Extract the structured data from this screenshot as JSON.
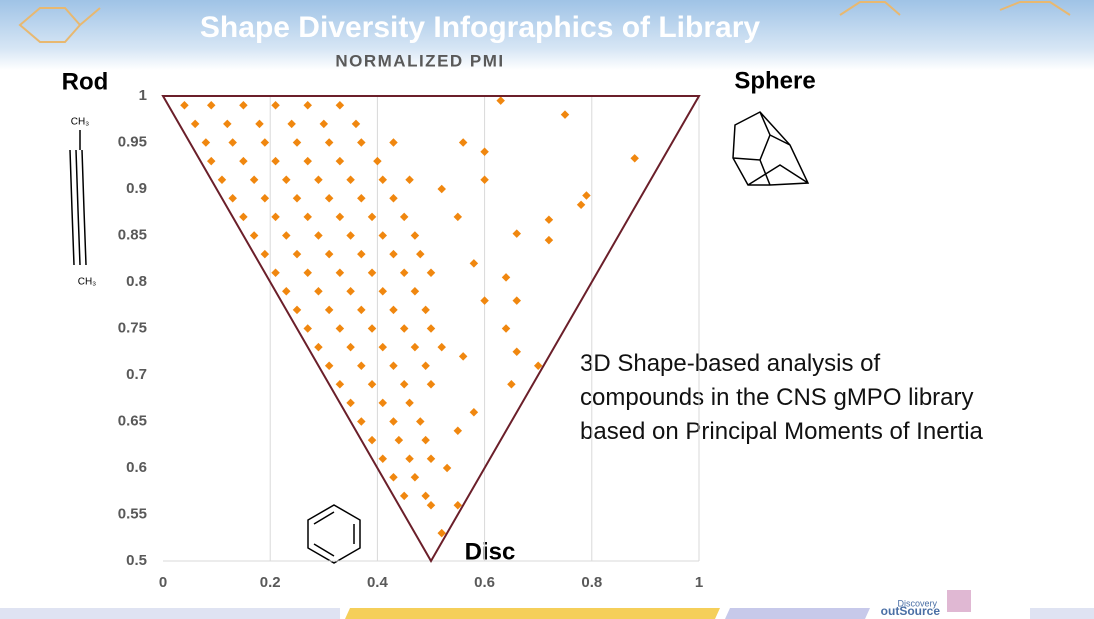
{
  "chart_data": {
    "type": "scatter",
    "title": "Shape Diversity Infographics of Library",
    "subtitle": "NORMALIZED PMI",
    "corner_labels": [
      "Rod",
      "Sphere",
      "Disc"
    ],
    "structure_labels": [
      "CH₃",
      "CH₃"
    ],
    "annotation": [
      "3D Shape-based analysis of",
      "compounds in the CNS gMPO library",
      "based on Principal Moments of Inertia"
    ],
    "footer": [
      "Discovery",
      "outSource"
    ],
    "color": "#f0870f",
    "grid": "x",
    "xlim": [
      0,
      1
    ],
    "ylim": [
      0.5,
      1
    ],
    "xticks": [
      0,
      0.2,
      0.4,
      0.6,
      0.8,
      1
    ],
    "yticks": [
      0.5,
      0.55,
      0.6,
      0.65,
      0.7,
      0.75,
      0.8,
      0.85,
      0.9,
      0.95,
      1
    ],
    "x": [
      0.04,
      0.09,
      0.15,
      0.21,
      0.27,
      0.33,
      0.06,
      0.12,
      0.18,
      0.24,
      0.3,
      0.36,
      0.08,
      0.13,
      0.19,
      0.25,
      0.31,
      0.37,
      0.43,
      0.09,
      0.15,
      0.21,
      0.27,
      0.33,
      0.4,
      0.11,
      0.17,
      0.23,
      0.29,
      0.35,
      0.41,
      0.46,
      0.13,
      0.19,
      0.25,
      0.31,
      0.37,
      0.43,
      0.15,
      0.21,
      0.27,
      0.33,
      0.39,
      0.45,
      0.17,
      0.23,
      0.29,
      0.35,
      0.41,
      0.47,
      0.19,
      0.25,
      0.31,
      0.37,
      0.43,
      0.48,
      0.21,
      0.27,
      0.33,
      0.39,
      0.45,
      0.5,
      0.23,
      0.29,
      0.35,
      0.41,
      0.47,
      0.25,
      0.31,
      0.37,
      0.43,
      0.49,
      0.27,
      0.33,
      0.39,
      0.45,
      0.5,
      0.29,
      0.35,
      0.41,
      0.47,
      0.52,
      0.31,
      0.37,
      0.43,
      0.49,
      0.33,
      0.39,
      0.45,
      0.5,
      0.35,
      0.41,
      0.46,
      0.37,
      0.43,
      0.48,
      0.39,
      0.44,
      0.49,
      0.41,
      0.46,
      0.5,
      0.43,
      0.47,
      0.45,
      0.49,
      0.63,
      0.75,
      0.88,
      0.79,
      0.78,
      0.72,
      0.72,
      0.66,
      0.64,
      0.66,
      0.64,
      0.66,
      0.7,
      0.65,
      0.56,
      0.6,
      0.6,
      0.56,
      0.52,
      0.5,
      0.55,
      0.53,
      0.55,
      0.58,
      0.6,
      0.58,
      0.55,
      0.52
    ],
    "values": [
      0.99,
      0.99,
      0.99,
      0.99,
      0.99,
      0.99,
      0.97,
      0.97,
      0.97,
      0.97,
      0.97,
      0.97,
      0.95,
      0.95,
      0.95,
      0.95,
      0.95,
      0.95,
      0.95,
      0.93,
      0.93,
      0.93,
      0.93,
      0.93,
      0.93,
      0.91,
      0.91,
      0.91,
      0.91,
      0.91,
      0.91,
      0.91,
      0.89,
      0.89,
      0.89,
      0.89,
      0.89,
      0.89,
      0.87,
      0.87,
      0.87,
      0.87,
      0.87,
      0.87,
      0.85,
      0.85,
      0.85,
      0.85,
      0.85,
      0.85,
      0.83,
      0.83,
      0.83,
      0.83,
      0.83,
      0.83,
      0.81,
      0.81,
      0.81,
      0.81,
      0.81,
      0.81,
      0.79,
      0.79,
      0.79,
      0.79,
      0.79,
      0.77,
      0.77,
      0.77,
      0.77,
      0.77,
      0.75,
      0.75,
      0.75,
      0.75,
      0.75,
      0.73,
      0.73,
      0.73,
      0.73,
      0.73,
      0.71,
      0.71,
      0.71,
      0.71,
      0.69,
      0.69,
      0.69,
      0.69,
      0.67,
      0.67,
      0.67,
      0.65,
      0.65,
      0.65,
      0.63,
      0.63,
      0.63,
      0.61,
      0.61,
      0.61,
      0.59,
      0.59,
      0.57,
      0.57,
      0.995,
      0.98,
      0.933,
      0.893,
      0.883,
      0.867,
      0.845,
      0.852,
      0.805,
      0.78,
      0.75,
      0.725,
      0.71,
      0.69,
      0.72,
      0.94,
      0.91,
      0.95,
      0.53,
      0.56,
      0.56,
      0.6,
      0.64,
      0.66,
      0.78,
      0.82,
      0.87,
      0.9
    ]
  }
}
